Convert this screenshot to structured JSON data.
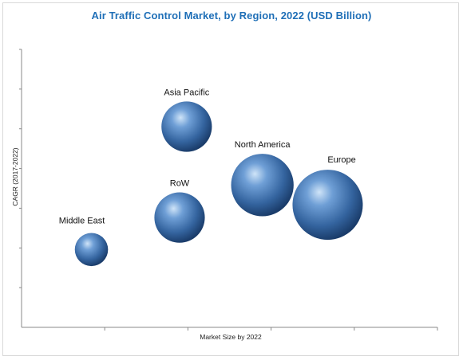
{
  "chart_data": {
    "type": "bubble",
    "title": "Air Traffic Control Market, by Region, 2022  (USD Billion)",
    "xlabel": "Market Size by 2022",
    "ylabel": "CAGR (2017-2022)",
    "xlim": [
      0,
      10
    ],
    "ylim": [
      0,
      10
    ],
    "grid": false,
    "bubble_color": "#3f6fb0",
    "points": [
      {
        "label": "Asia Pacific",
        "x": 3.97,
        "y": 7.22,
        "size": 1.17
      },
      {
        "label": "North America",
        "x": 5.79,
        "y": 5.12,
        "size": 1.45
      },
      {
        "label": "Europe",
        "x": 7.36,
        "y": 4.41,
        "size": 1.63
      },
      {
        "label": "RoW",
        "x": 3.8,
        "y": 3.95,
        "size": 1.17
      },
      {
        "label": "Middle East",
        "x": 1.68,
        "y": 2.8,
        "size": 0.77
      }
    ]
  }
}
